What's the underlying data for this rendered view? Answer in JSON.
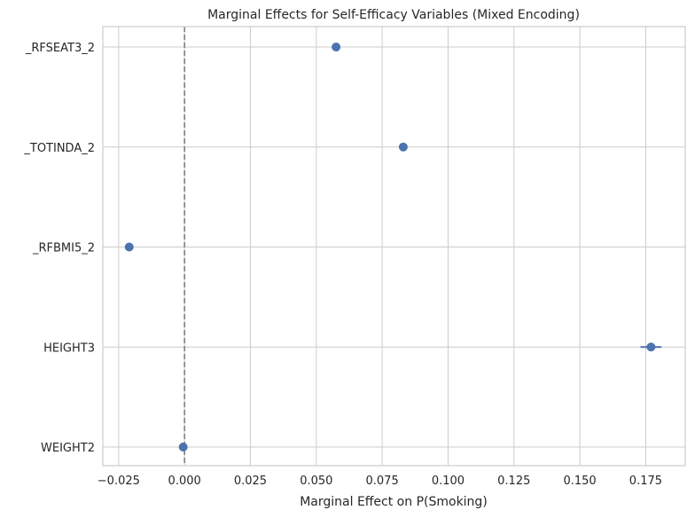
{
  "chart_data": {
    "type": "scatter",
    "title": "Marginal Effects for Self-Efficacy Variables (Mixed Encoding)",
    "xlabel": "Marginal Effect on P(Smoking)",
    "ylabel": "",
    "xlim": [
      -0.031,
      0.19
    ],
    "xticks": [
      -0.025,
      0.0,
      0.025,
      0.05,
      0.075,
      0.1,
      0.125,
      0.15,
      0.175
    ],
    "xtick_labels": [
      "−0.025",
      "0.000",
      "0.025",
      "0.050",
      "0.075",
      "0.100",
      "0.125",
      "0.150",
      "0.175"
    ],
    "categories": [
      "_RFSEAT3_2",
      "_TOTINDA_2",
      "_RFBMI5_2",
      "HEIGHT3",
      "WEIGHT2"
    ],
    "values": [
      0.0575,
      0.083,
      -0.021,
      0.177,
      -0.0005
    ],
    "error_low": [
      0.0575,
      0.083,
      -0.021,
      0.173,
      -0.0008
    ],
    "error_high": [
      0.0575,
      0.083,
      -0.021,
      0.181,
      -0.0002
    ],
    "reference_line_x": 0.0,
    "grid": true,
    "colors": {
      "marker": "#4c72b0",
      "reference_line": "#808080",
      "grid": "#cccccc"
    }
  }
}
